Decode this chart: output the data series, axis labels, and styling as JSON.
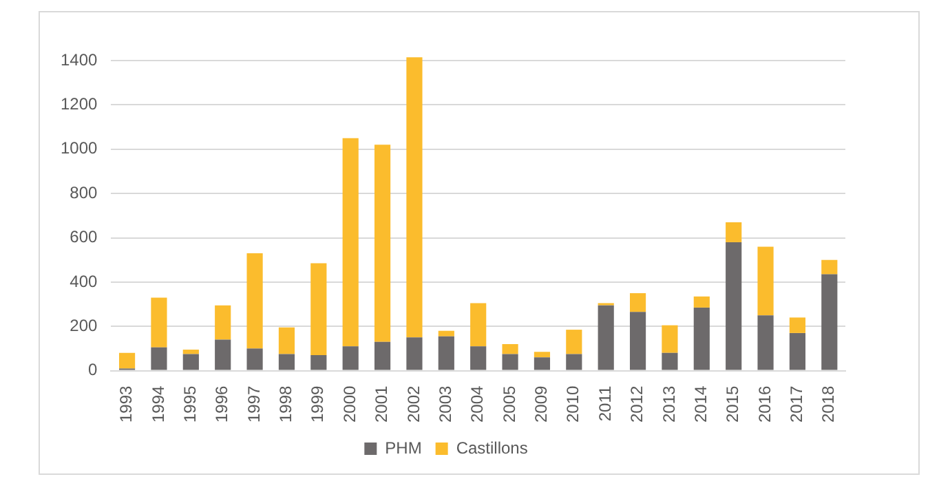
{
  "chart_data": {
    "type": "bar",
    "stacked": true,
    "categories": [
      "1993",
      "1994",
      "1995",
      "1996",
      "1997",
      "1998",
      "1999",
      "2000",
      "2001",
      "2002",
      "2003",
      "2004",
      "2005",
      "2009",
      "2010",
      "2011",
      "2012",
      "2013",
      "2014",
      "2015",
      "2016",
      "2017",
      "2018"
    ],
    "series": [
      {
        "name": "PHM",
        "color": "#6d6a6b",
        "values": [
          10,
          105,
          75,
          140,
          100,
          75,
          70,
          110,
          130,
          150,
          155,
          110,
          75,
          60,
          75,
          295,
          265,
          80,
          285,
          580,
          250,
          170,
          435
        ]
      },
      {
        "name": "Castillons",
        "color": "#fbbc2d",
        "values": [
          70,
          225,
          20,
          155,
          430,
          120,
          415,
          940,
          890,
          1265,
          25,
          195,
          45,
          25,
          110,
          10,
          85,
          125,
          50,
          90,
          310,
          70,
          65
        ]
      }
    ],
    "ylim": [
      0,
      1430
    ],
    "yticks": [
      0,
      200,
      400,
      600,
      800,
      1000,
      1200,
      1400
    ],
    "grid": "y",
    "legend": "bottom"
  }
}
